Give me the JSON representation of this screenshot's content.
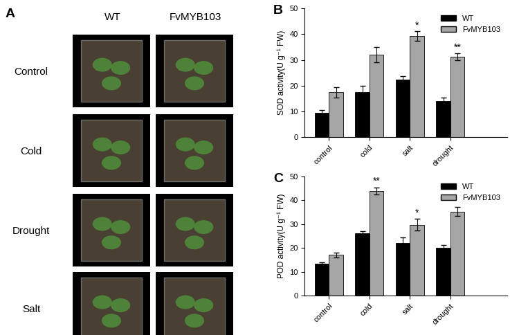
{
  "photo_panel": {
    "label": "A",
    "columns": [
      "WT",
      "FvMYB103"
    ],
    "rows": [
      "Control",
      "Cold",
      "Drought",
      "Salt"
    ]
  },
  "chart_data": [
    {
      "type": "bar",
      "panel_label": "B",
      "y_label": "SOD activity(U g⁻¹ FW)",
      "categories": [
        "control",
        "cold",
        "salt",
        "drought"
      ],
      "series": [
        {
          "name": "WT",
          "color": "#000000",
          "values": [
            9.5,
            17.5,
            22.5,
            14.0
          ],
          "errors": [
            1.0,
            2.5,
            1.2,
            1.3
          ]
        },
        {
          "name": "FvMYB103",
          "color": "#a6a6a6",
          "values": [
            17.5,
            32.0,
            39.3,
            31.3
          ],
          "errors": [
            2.0,
            3.0,
            1.8,
            1.3
          ]
        }
      ],
      "ylim": [
        0,
        50
      ],
      "yticks": [
        0,
        10,
        20,
        30,
        40,
        50
      ],
      "legend": "upper right",
      "annotations": [
        {
          "category": "salt",
          "series": "FvMYB103",
          "text": "*"
        },
        {
          "category": "drought",
          "series": "FvMYB103",
          "text": "**"
        }
      ]
    },
    {
      "type": "bar",
      "panel_label": "C",
      "y_label": "POD activity(U g⁻¹ FW)",
      "categories": [
        "control",
        "cold",
        "salt",
        "drought"
      ],
      "series": [
        {
          "name": "WT",
          "color": "#000000",
          "values": [
            13.3,
            26.3,
            22.0,
            20.0
          ],
          "errors": [
            0.5,
            0.8,
            2.5,
            1.3
          ]
        },
        {
          "name": "FvMYB103",
          "color": "#a6a6a6",
          "values": [
            17.0,
            44.0,
            29.7,
            35.3
          ],
          "errors": [
            1.0,
            1.5,
            2.5,
            2.0
          ]
        }
      ],
      "ylim": [
        0,
        50
      ],
      "yticks": [
        0,
        10,
        20,
        30,
        40,
        50
      ],
      "legend": "upper right",
      "annotations": [
        {
          "category": "cold",
          "series": "FvMYB103",
          "text": "**"
        },
        {
          "category": "salt",
          "series": "FvMYB103",
          "text": "*"
        }
      ]
    }
  ]
}
